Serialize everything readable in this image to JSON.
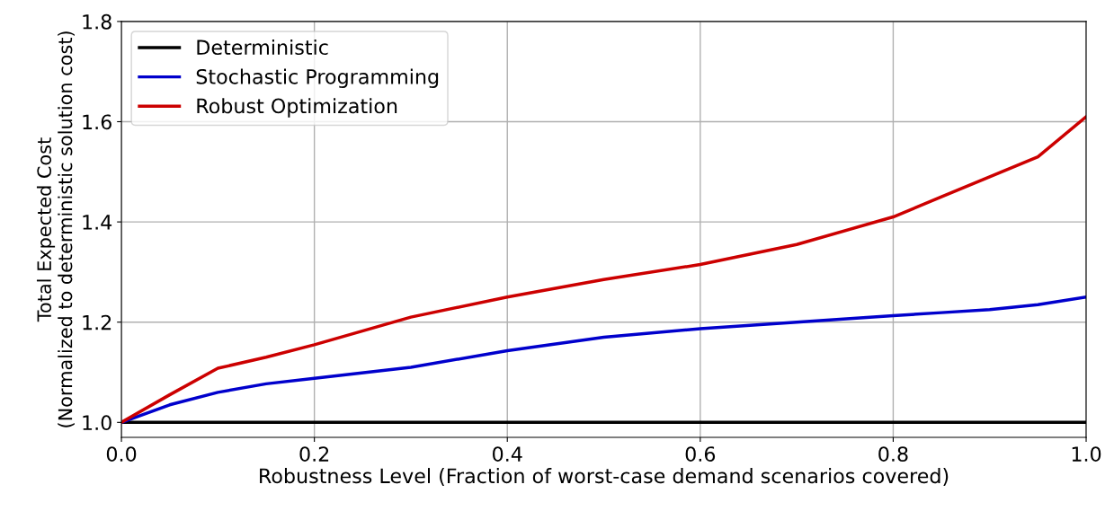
{
  "chart_data": {
    "type": "line",
    "xlabel": "Robustness Level (Fraction of worst-case demand scenarios covered)",
    "ylabel": "Total Expected Cost\n(Normalized to deterministic solution cost)",
    "x": [
      0,
      0.05,
      0.1,
      0.15,
      0.2,
      0.3,
      0.4,
      0.5,
      0.6,
      0.7,
      0.8,
      0.85,
      0.9,
      0.95,
      1.0
    ],
    "series": [
      {
        "name": "Deterministic",
        "color": "#000000",
        "values": [
          1.0,
          1.0,
          1.0,
          1.0,
          1.0,
          1.0,
          1.0,
          1.0,
          1.0,
          1.0,
          1.0,
          1.0,
          1.0,
          1.0,
          1.0
        ]
      },
      {
        "name": "Stochastic Programming",
        "color": "#0000cc",
        "values": [
          1.0,
          1.035,
          1.06,
          1.077,
          1.088,
          1.11,
          1.143,
          1.17,
          1.187,
          1.2,
          1.213,
          1.219,
          1.225,
          1.235,
          1.25
        ]
      },
      {
        "name": "Robust Optimization",
        "color": "#cc0000",
        "values": [
          1.0,
          1.055,
          1.108,
          1.13,
          1.155,
          1.21,
          1.25,
          1.285,
          1.315,
          1.355,
          1.41,
          1.45,
          1.49,
          1.53,
          1.61
        ]
      }
    ],
    "xlim": [
      0,
      1.0
    ],
    "xticks": [
      {
        "value": 0,
        "label": "0.0"
      },
      0.2,
      0.4,
      0.6,
      0.8,
      {
        "value": 1.0,
        "label": "1.0"
      }
    ],
    "ylim": [
      0.97,
      1.8
    ],
    "yticks": [
      {
        "value": 1.0,
        "label": "1.0"
      },
      1.2,
      1.4,
      1.6,
      1.8
    ],
    "grid": true,
    "legend": "top left",
    "marker": "none",
    "line_style": "solid"
  }
}
